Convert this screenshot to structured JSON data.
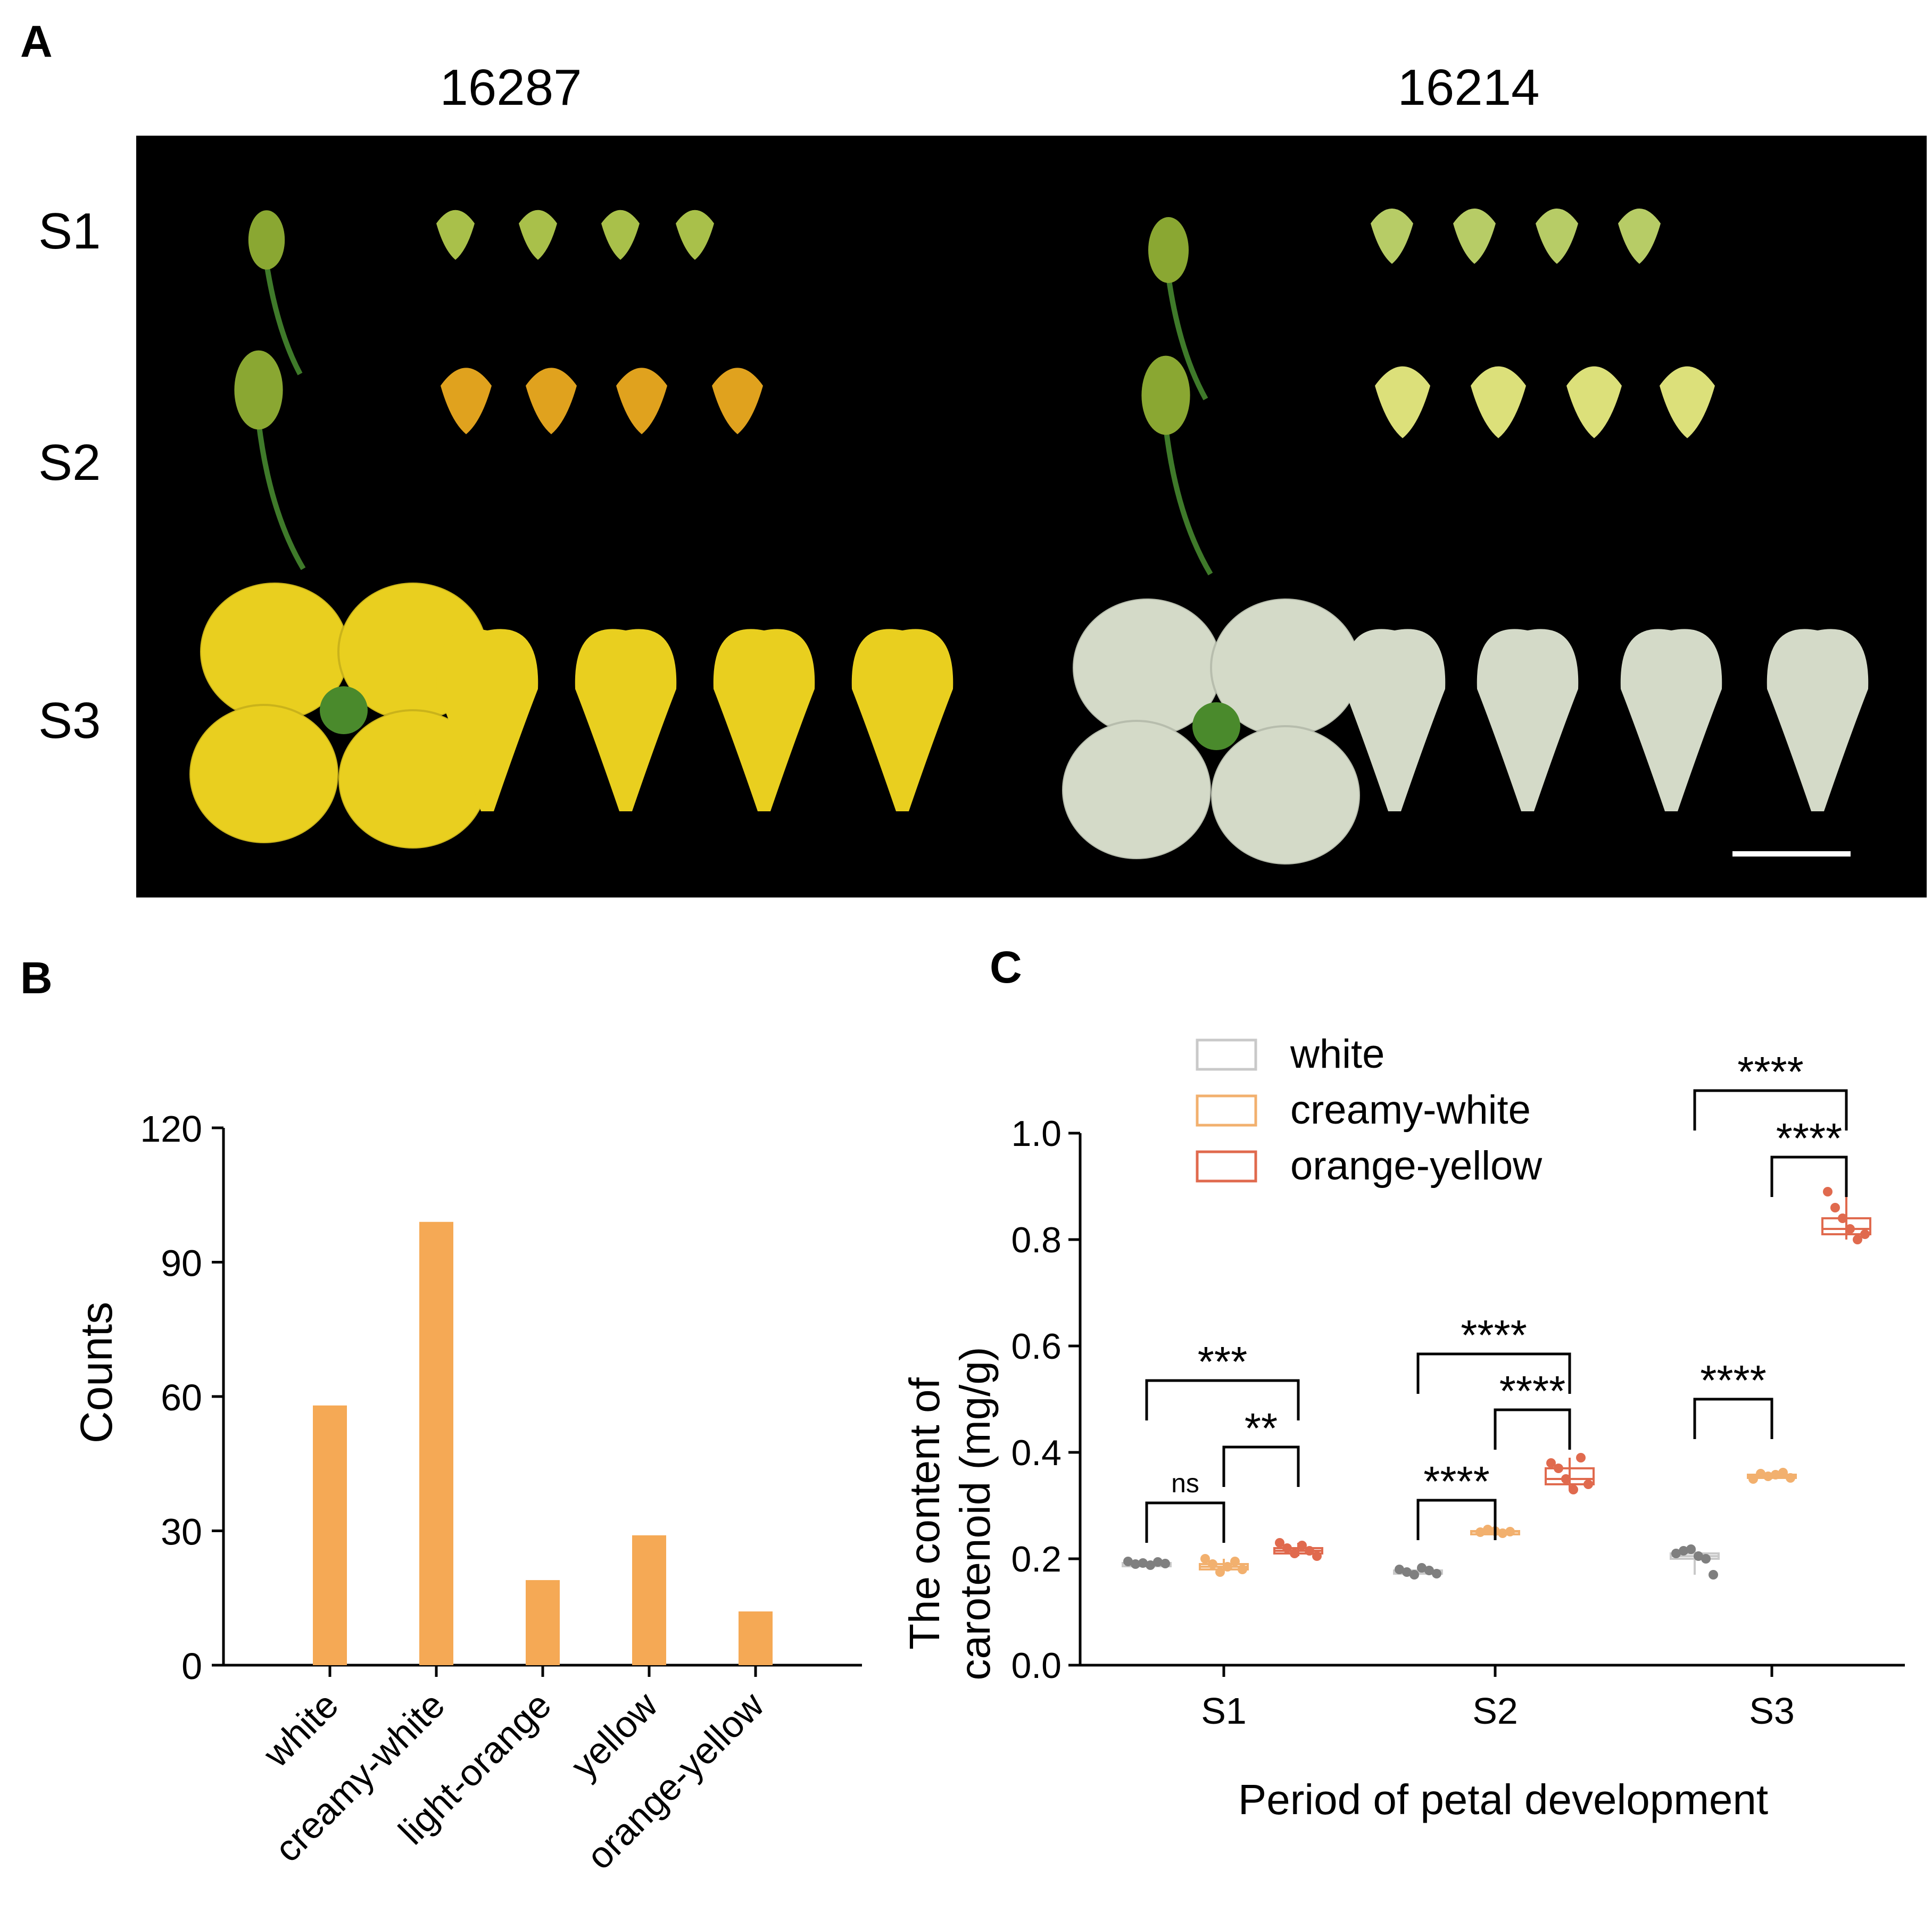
{
  "panels": {
    "a": {
      "label": "A",
      "col_titles": [
        "16287",
        "16214"
      ],
      "stage_labels": [
        "S1",
        "S2",
        "S3"
      ]
    },
    "b": {
      "label": "B"
    },
    "c": {
      "label": "C"
    }
  },
  "colors": {
    "bar": "#F5A955",
    "white_series": "#7F7F7F",
    "white_box": "#C9C9C9",
    "creamy_series": "#F2B06E",
    "orange_series": "#E06A4E",
    "petal_yellow": "#E9CF1F",
    "petal_orange": "#E0A21E",
    "petal_white": "#D4DAC8",
    "bud_green": "#8AA732"
  },
  "chart_data": [
    {
      "type": "bar",
      "title": "",
      "xlabel": "",
      "ylabel": "Counts",
      "categories": [
        "white",
        "creamy-white",
        "light-orange",
        "yellow",
        "orange-yellow"
      ],
      "values": [
        58,
        99,
        19,
        29,
        12
      ],
      "ylim": [
        0,
        120
      ],
      "yticks": [
        0,
        30,
        60,
        90,
        120
      ],
      "grid": false
    },
    {
      "type": "box",
      "title": "",
      "xlabel": "Period of petal development",
      "ylabel": [
        "The content of",
        "carotenoid (mg/g)"
      ],
      "categories": [
        "S1",
        "S2",
        "S3"
      ],
      "ylim": [
        0,
        1.0
      ],
      "yticks": [
        "0.0",
        "0.2",
        "0.4",
        "0.6",
        "0.8",
        "1.0"
      ],
      "legend": {
        "position": "top-left",
        "entries": [
          "white",
          "creamy-white",
          "orange-yellow"
        ]
      },
      "series": [
        {
          "name": "white",
          "points": [
            [
              0.195,
              0.19,
              0.192,
              0.188,
              0.194,
              0.191
            ],
            [
              0.18,
              0.175,
              0.17,
              0.183,
              0.178,
              0.172
            ],
            [
              0.21,
              0.215,
              0.218,
              0.205,
              0.2,
              0.17
            ]
          ]
        },
        {
          "name": "creamy-white",
          "points": [
            [
              0.2,
              0.19,
              0.175,
              0.185,
              0.195,
              0.18
            ],
            [
              0.25,
              0.255,
              0.252,
              0.248,
              0.251
            ],
            [
              0.35,
              0.36,
              0.355,
              0.358,
              0.362,
              0.352
            ]
          ]
        },
        {
          "name": "orange-yellow",
          "points": [
            [
              0.23,
              0.22,
              0.21,
              0.225,
              0.215,
              0.205
            ],
            [
              0.38,
              0.37,
              0.35,
              0.33,
              0.39,
              0.34
            ],
            [
              0.89,
              0.86,
              0.84,
              0.82,
              0.8,
              0.81
            ]
          ]
        }
      ],
      "significance": [
        {
          "stage": "S1",
          "from": "white",
          "to": "creamy-white",
          "label": "ns",
          "y": 0.305
        },
        {
          "stage": "S1",
          "from": "creamy-white",
          "to": "orange-yellow",
          "label": "**",
          "y": 0.41
        },
        {
          "stage": "S1",
          "from": "white",
          "to": "orange-yellow",
          "label": "***",
          "y": 0.535
        },
        {
          "stage": "S2",
          "from": "white",
          "to": "creamy-white",
          "label": "****",
          "y": 0.31
        },
        {
          "stage": "S2",
          "from": "creamy-white",
          "to": "orange-yellow",
          "label": "****",
          "y": 0.48
        },
        {
          "stage": "S2",
          "from": "white",
          "to": "orange-yellow",
          "label": "****",
          "y": 0.585
        },
        {
          "stage": "S3",
          "from": "white",
          "to": "creamy-white",
          "label": "****",
          "y": 0.5
        },
        {
          "stage": "S3",
          "from": "creamy-white",
          "to": "orange-yellow",
          "label": "****",
          "y": 0.955
        },
        {
          "stage": "S3",
          "from": "white",
          "to": "orange-yellow",
          "label": "****",
          "y": 1.08
        }
      ]
    }
  ]
}
